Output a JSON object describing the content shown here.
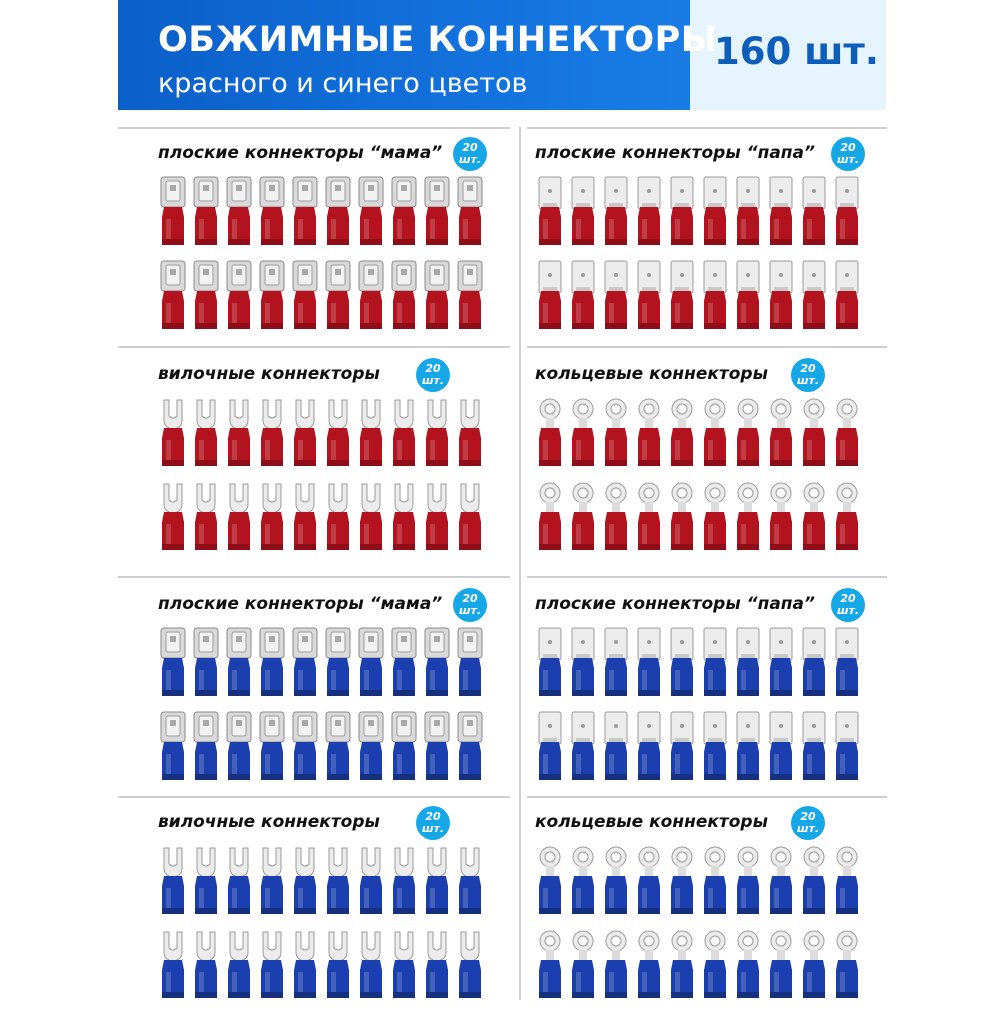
{
  "header": {
    "title": "ОБЖИМНЫЕ КОННЕКТОРЫ",
    "subtitle": "красного и синего цветов",
    "count": "160 шт."
  },
  "colors": {
    "brand_blue": "#0b5fc9",
    "badge_blue": "#16a7e6",
    "red_insulation": "#b3131e",
    "blue_insulation": "#1c3fb0",
    "metal": "#d9d9d9"
  },
  "sections": [
    {
      "title": "плоские коннекторы “мама”",
      "badge_num": "20",
      "badge_unit": "шт.",
      "type": "female",
      "color": "red"
    },
    {
      "title": "плоские коннекторы “папа”",
      "badge_num": "20",
      "badge_unit": "шт.",
      "type": "male",
      "color": "red"
    },
    {
      "title": "вилочные коннекторы",
      "badge_num": "20",
      "badge_unit": "шт.",
      "type": "fork",
      "color": "red"
    },
    {
      "title": "кольцевые коннекторы",
      "badge_num": "20",
      "badge_unit": "шт.",
      "type": "ring",
      "color": "red"
    },
    {
      "title": "плоские коннекторы “мама”",
      "badge_num": "20",
      "badge_unit": "шт.",
      "type": "female",
      "color": "blue"
    },
    {
      "title": "плоские коннекторы “папа”",
      "badge_num": "20",
      "badge_unit": "шт.",
      "type": "male",
      "color": "blue"
    },
    {
      "title": "вилочные коннекторы",
      "badge_num": "20",
      "badge_unit": "шт.",
      "type": "fork",
      "color": "blue"
    },
    {
      "title": "кольцевые коннекторы",
      "badge_num": "20",
      "badge_unit": "шт.",
      "type": "ring",
      "color": "blue"
    }
  ]
}
